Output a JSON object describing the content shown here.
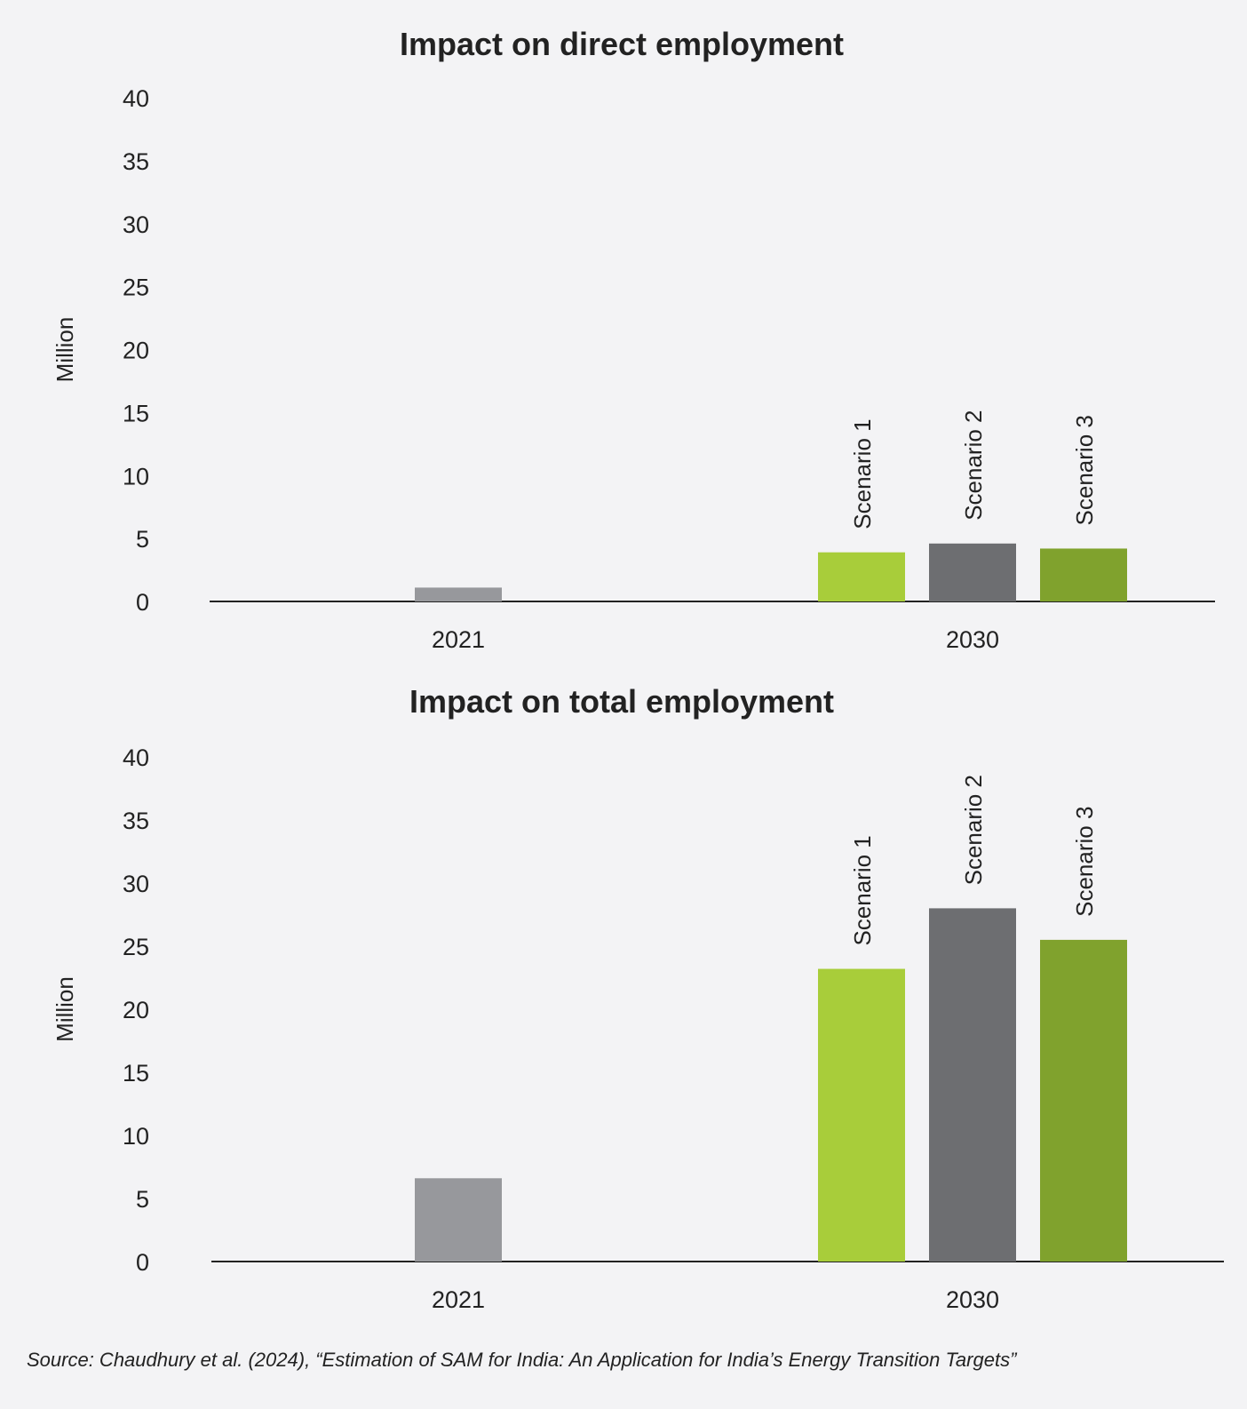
{
  "chart_data": [
    {
      "type": "bar",
      "title": "Impact on direct employment",
      "ylabel": "Million",
      "ylim": [
        0,
        40
      ],
      "yticks": [
        0,
        5,
        10,
        15,
        20,
        25,
        30,
        35,
        40
      ],
      "categories": [
        "2021",
        "2030"
      ],
      "bars": [
        {
          "category": "2021",
          "label": "",
          "value": 1.1,
          "color": "#97989c"
        },
        {
          "category": "2030",
          "label": "Scenario 1",
          "value": 3.9,
          "color": "#a8cd3a"
        },
        {
          "category": "2030",
          "label": "Scenario 2",
          "value": 4.6,
          "color": "#6d6e71"
        },
        {
          "category": "2030",
          "label": "Scenario 3",
          "value": 4.2,
          "color": "#80a22d"
        }
      ]
    },
    {
      "type": "bar",
      "title": "Impact on total employment",
      "ylabel": "Million",
      "ylim": [
        0,
        40
      ],
      "yticks": [
        0,
        5,
        10,
        15,
        20,
        25,
        30,
        35,
        40
      ],
      "categories": [
        "2021",
        "2030"
      ],
      "bars": [
        {
          "category": "2021",
          "label": "",
          "value": 6.6,
          "color": "#97989c"
        },
        {
          "category": "2030",
          "label": "Scenario 1",
          "value": 23.2,
          "color": "#a8cd3a"
        },
        {
          "category": "2030",
          "label": "Scenario 2",
          "value": 28.0,
          "color": "#6d6e71"
        },
        {
          "category": "2030",
          "label": "Scenario 3",
          "value": 25.5,
          "color": "#80a22d"
        }
      ]
    }
  ],
  "source": "Source: Chaudhury et al. (2024), “Estimation of SAM for India: An Application for India’s Energy Transition Targets”"
}
